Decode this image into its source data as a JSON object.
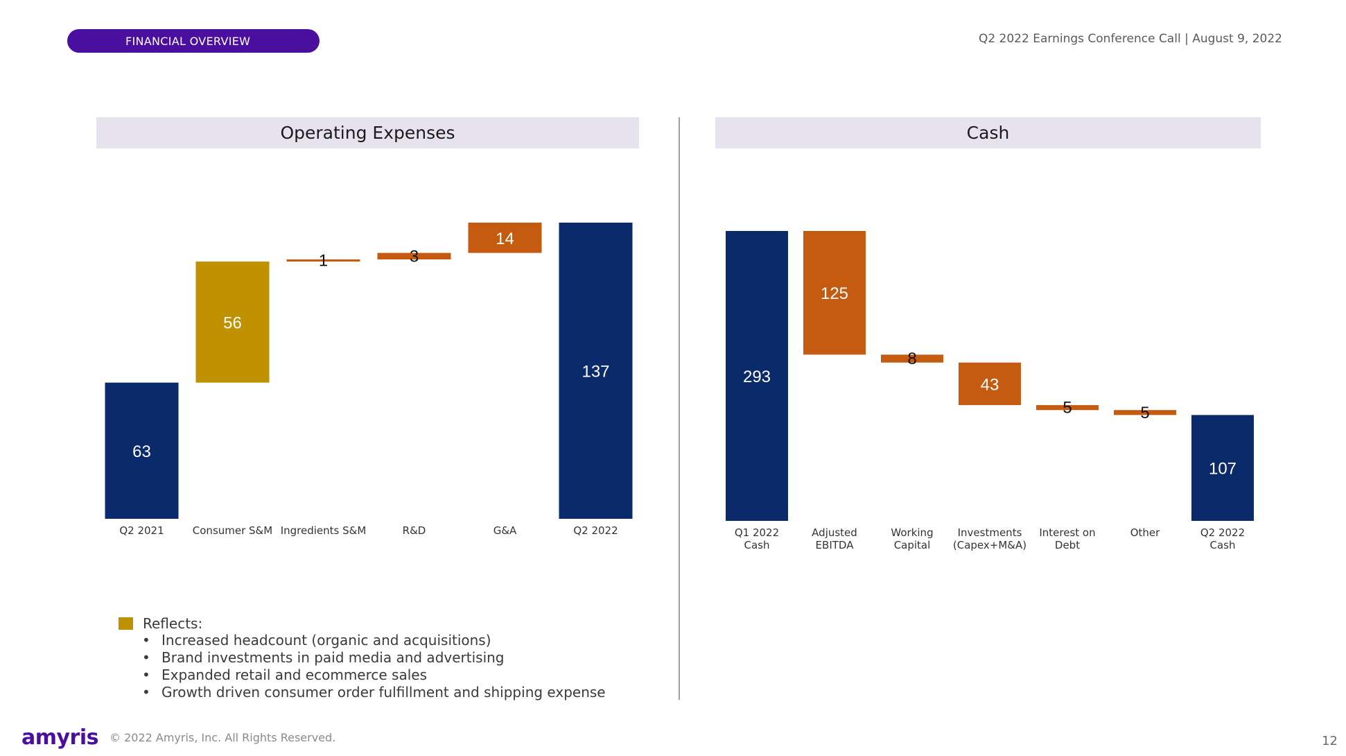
{
  "header": {
    "section": "FINANCIAL OVERVIEW",
    "event": "Q2 2022 Earnings Conference Call | August 9, 2022"
  },
  "colors": {
    "accent_purple": "#4b0fa0",
    "navy": "#0a2a6b",
    "gold": "#bf9000",
    "orange": "#c55a11",
    "panel_bg": "#e6e3ee"
  },
  "chart_data": [
    {
      "type": "bar",
      "title": "Operating Expenses",
      "categories": [
        "Q2 2021",
        "Consumer S&M",
        "Ingredients S&M",
        "R&D",
        "G&A",
        "Q2 2022"
      ],
      "values": [
        63,
        56,
        1,
        3,
        14,
        137
      ],
      "kinds": [
        "total",
        "increase",
        "increase",
        "increase",
        "increase",
        "total"
      ],
      "bar_colors": [
        "#0a2a6b",
        "#bf9000",
        "#c55a11",
        "#c55a11",
        "#c55a11",
        "#0a2a6b"
      ],
      "ylim": [
        0,
        137
      ],
      "grid": false
    },
    {
      "type": "bar",
      "title": "Cash",
      "categories": [
        "Q1 2022 Cash",
        "Adjusted EBITDA",
        "Working Capital",
        "Investments (Capex+M&A)",
        "Interest on Debt",
        "Other",
        "Q2 2022 Cash"
      ],
      "values": [
        293,
        125,
        8,
        43,
        5,
        5,
        107
      ],
      "kinds": [
        "total",
        "decrease",
        "decrease",
        "decrease",
        "decrease",
        "decrease",
        "total"
      ],
      "bar_colors": [
        "#0a2a6b",
        "#c55a11",
        "#c55a11",
        "#c55a11",
        "#c55a11",
        "#c55a11",
        "#0a2a6b"
      ],
      "ylim": [
        0,
        293
      ],
      "grid": false
    }
  ],
  "legend": {
    "head": "Reflects:",
    "items": [
      "Increased headcount (organic and acquisitions)",
      "Brand investments in paid media and advertising",
      "Expanded retail and ecommerce sales",
      "Growth driven consumer order fulfillment and shipping expense"
    ]
  },
  "footer": {
    "logo": "amyris",
    "copyright": "© 2022 Amyris, Inc. All Rights Reserved.",
    "page": "12"
  }
}
